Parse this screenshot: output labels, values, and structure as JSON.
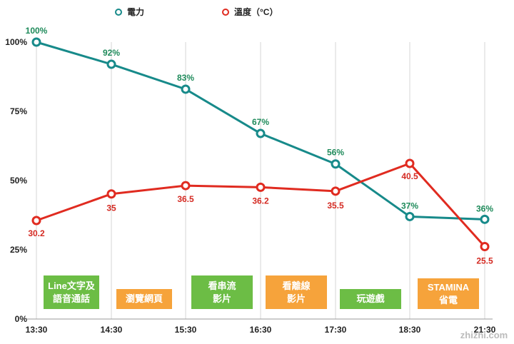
{
  "chart_data": {
    "type": "line",
    "categories": [
      "13:30",
      "14:30",
      "15:30",
      "16:30",
      "17:30",
      "18:30",
      "21:30"
    ],
    "series": [
      {
        "name": "電力",
        "color": "#178a8a",
        "label_color": "#1e8a5a",
        "values": [
          100,
          92,
          83,
          67,
          56,
          37,
          36
        ],
        "labels": [
          "100%",
          "92%",
          "83%",
          "67%",
          "56%",
          "37%",
          "36%"
        ],
        "axis": "left"
      },
      {
        "name": "溫度（°C）",
        "color": "#e02b20",
        "label_color": "#d42a22",
        "values": [
          30.2,
          35,
          36.5,
          36.2,
          35.5,
          40.5,
          25.5
        ],
        "labels": [
          "30.2",
          "35",
          "36.5",
          "36.2",
          "35.5",
          "40.5",
          "25.5"
        ],
        "axis": "right"
      }
    ],
    "yticks": [
      "0%",
      "25%",
      "50%",
      "75%",
      "100%"
    ],
    "ylim": [
      0,
      100
    ],
    "grid": "vertical",
    "legend_position": "top-center",
    "activities": [
      {
        "text": "Line文字及\n語音通話",
        "color": "#6cbd45"
      },
      {
        "text": "瀏覽網頁",
        "color": "#f6a33b"
      },
      {
        "text": "看串流\n影片",
        "color": "#6cbd45"
      },
      {
        "text": "看離線\n影片",
        "color": "#f6a33b"
      },
      {
        "text": "玩遊戲",
        "color": "#6cbd45"
      },
      {
        "text": "STAMINA\n省電",
        "color": "#f6a33b"
      }
    ]
  },
  "watermark": "zhizhi.com"
}
